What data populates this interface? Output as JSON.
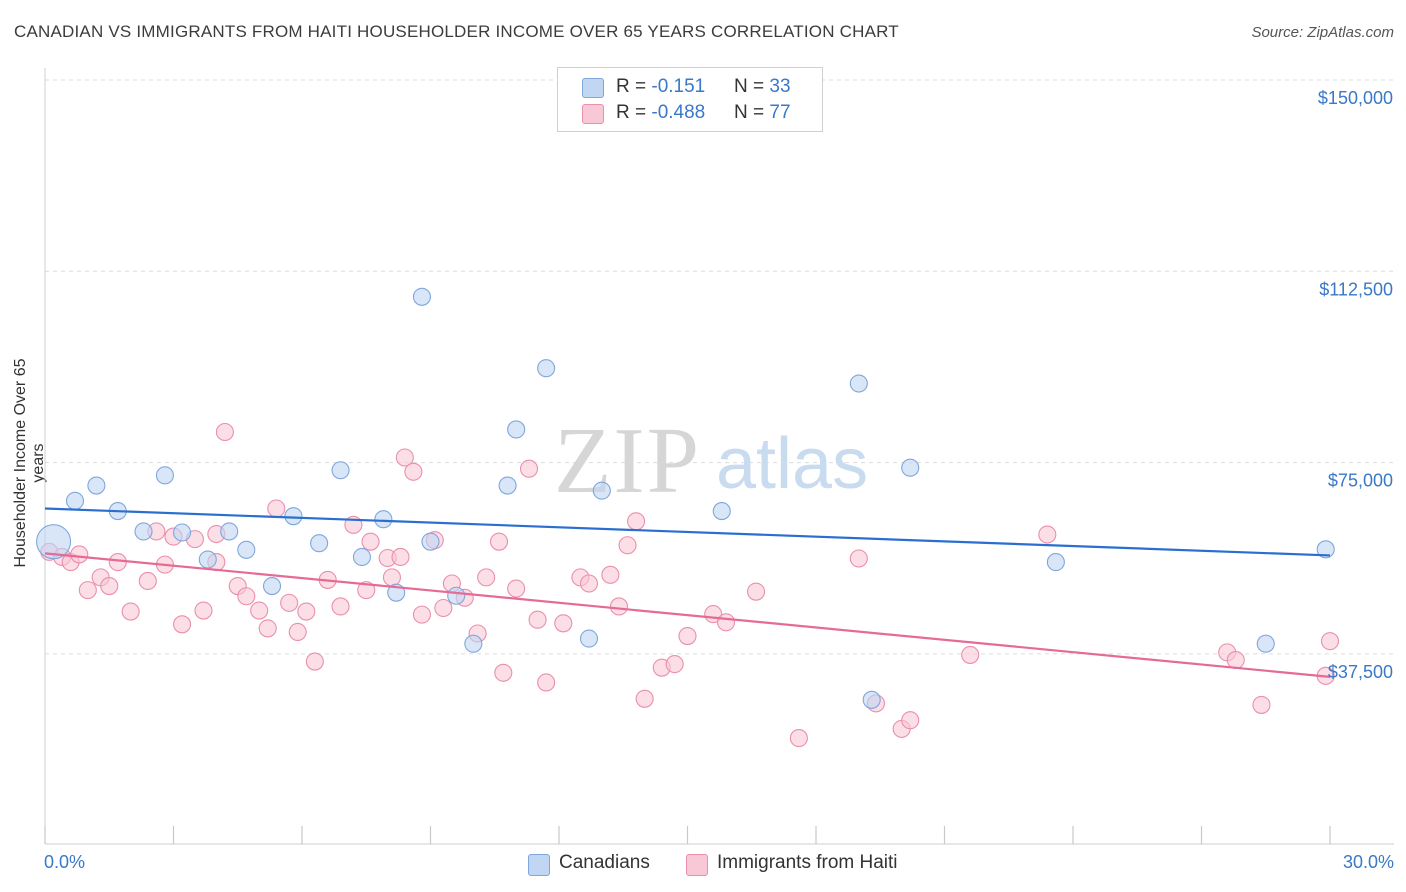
{
  "title": "CANADIAN VS IMMIGRANTS FROM HAITI HOUSEHOLDER INCOME OVER 65 YEARS CORRELATION CHART",
  "source": "Source: ZipAtlas.com",
  "watermark": {
    "zip": "ZIP",
    "atlas": "atlas"
  },
  "colors": {
    "canadians_fill": "#c0d6f3",
    "canadians_stroke": "#7fa7dc",
    "canadians_line": "#2a6fd0",
    "haiti_fill": "#f8c8d6",
    "haiti_stroke": "#eb8fab",
    "haiti_line": "#e56b97",
    "grid": "#dcdcdc",
    "tick_text": "#3a78c9"
  },
  "legend_top": {
    "rows": [
      {
        "r_label": "R = ",
        "r_value": "-0.151",
        "n_label": "N = ",
        "n_value": "33"
      },
      {
        "r_label": "R = ",
        "r_value": "-0.488",
        "n_label": "N = ",
        "n_value": "77"
      }
    ]
  },
  "legend_bottom": [
    "Canadians",
    "Immigrants from Haiti"
  ],
  "chart_data": {
    "type": "scatter",
    "ylabel": "Householder Income Over 65 years",
    "xlabel": "",
    "x_tick_labels": [
      "0.0%",
      "30.0%"
    ],
    "y_tick_labels": [
      "$150,000",
      "$112,500",
      "$75,000",
      "$37,500"
    ],
    "xlim": [
      0,
      30
    ],
    "ylim": [
      0,
      155000
    ],
    "grid": true,
    "legend_placement": "top-center",
    "series": [
      {
        "name": "Canadians",
        "trend": {
          "x0": 0,
          "y0": 66000,
          "x1": 30,
          "y1": 56800
        },
        "points": [
          [
            0.2,
            59500,
            "big"
          ],
          [
            0.7,
            67500
          ],
          [
            1.2,
            70500
          ],
          [
            1.7,
            65500
          ],
          [
            2.3,
            61500
          ],
          [
            2.8,
            72500
          ],
          [
            3.2,
            61300
          ],
          [
            3.8,
            56000
          ],
          [
            4.3,
            61500
          ],
          [
            4.7,
            57900
          ],
          [
            5.3,
            50800
          ],
          [
            5.8,
            64500
          ],
          [
            6.4,
            59200
          ],
          [
            6.9,
            73500
          ],
          [
            7.4,
            56500
          ],
          [
            7.9,
            63900
          ],
          [
            8.2,
            49500
          ],
          [
            8.8,
            107500
          ],
          [
            9.0,
            59500
          ],
          [
            9.6,
            48900
          ],
          [
            10.0,
            39500
          ],
          [
            10.8,
            70500
          ],
          [
            11.0,
            81500
          ],
          [
            11.7,
            93500
          ],
          [
            12.7,
            40500
          ],
          [
            13.0,
            69500
          ],
          [
            15.8,
            65500
          ],
          [
            19.0,
            90500
          ],
          [
            19.3,
            28500
          ],
          [
            20.2,
            74000
          ],
          [
            23.6,
            55500
          ],
          [
            28.5,
            39500
          ],
          [
            29.9,
            58000
          ]
        ]
      },
      {
        "name": "Immigrants from Haiti",
        "trend": {
          "x0": 0,
          "y0": 57200,
          "x1": 30,
          "y1": 33000
        },
        "points": [
          [
            0.1,
            57500
          ],
          [
            0.4,
            56500
          ],
          [
            0.6,
            55500
          ],
          [
            0.8,
            57000
          ],
          [
            1.0,
            50000
          ],
          [
            1.3,
            52500
          ],
          [
            1.5,
            50800
          ],
          [
            1.7,
            55500
          ],
          [
            2.0,
            45800
          ],
          [
            2.4,
            51800
          ],
          [
            2.6,
            61500
          ],
          [
            2.8,
            55000
          ],
          [
            3.0,
            60500
          ],
          [
            3.2,
            43300
          ],
          [
            3.5,
            60000
          ],
          [
            3.7,
            46000
          ],
          [
            4.0,
            55500
          ],
          [
            4.0,
            61000
          ],
          [
            4.2,
            81000
          ],
          [
            4.5,
            50800
          ],
          [
            4.7,
            48800
          ],
          [
            5.0,
            46000
          ],
          [
            5.2,
            42500
          ],
          [
            5.4,
            66000
          ],
          [
            5.7,
            47500
          ],
          [
            5.9,
            41800
          ],
          [
            6.1,
            45800
          ],
          [
            6.3,
            36000
          ],
          [
            6.6,
            52000
          ],
          [
            6.9,
            46800
          ],
          [
            7.2,
            62800
          ],
          [
            7.5,
            50000
          ],
          [
            7.6,
            59500
          ],
          [
            8.0,
            56300
          ],
          [
            8.1,
            52500
          ],
          [
            8.3,
            56500
          ],
          [
            8.4,
            76000
          ],
          [
            8.6,
            73200
          ],
          [
            8.8,
            45200
          ],
          [
            9.1,
            59800
          ],
          [
            9.3,
            46500
          ],
          [
            9.5,
            51300
          ],
          [
            9.8,
            48500
          ],
          [
            10.1,
            41500
          ],
          [
            10.3,
            52500
          ],
          [
            10.6,
            59500
          ],
          [
            10.7,
            33800
          ],
          [
            11.0,
            50300
          ],
          [
            11.3,
            73800
          ],
          [
            11.5,
            44200
          ],
          [
            11.7,
            31900
          ],
          [
            12.1,
            43500
          ],
          [
            12.5,
            52500
          ],
          [
            12.7,
            51300
          ],
          [
            13.2,
            53000
          ],
          [
            13.4,
            46800
          ],
          [
            13.6,
            58800
          ],
          [
            13.8,
            63500
          ],
          [
            14.0,
            28700
          ],
          [
            14.4,
            34800
          ],
          [
            14.7,
            35500
          ],
          [
            15.0,
            41000
          ],
          [
            15.6,
            45300
          ],
          [
            15.9,
            43700
          ],
          [
            16.6,
            49700
          ],
          [
            17.6,
            21000
          ],
          [
            19.0,
            56200
          ],
          [
            19.4,
            27800
          ],
          [
            20.0,
            22800
          ],
          [
            20.2,
            24500
          ],
          [
            21.6,
            37300
          ],
          [
            23.4,
            60900
          ],
          [
            27.6,
            37800
          ],
          [
            27.8,
            36300
          ],
          [
            28.4,
            27500
          ],
          [
            30.0,
            40000
          ],
          [
            29.9,
            33200
          ]
        ]
      }
    ]
  }
}
